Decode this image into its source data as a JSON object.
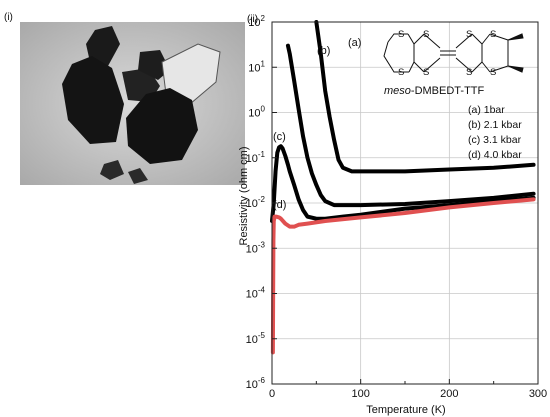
{
  "panels": {
    "left_label": "(i)",
    "right_label": "(ii)"
  },
  "molecule": {
    "name_prefix": "meso",
    "name_suffix": "-DMBEDT-TTF",
    "s_atom": "S"
  },
  "chart_data": {
    "type": "line",
    "xlabel": "Temperature (K)",
    "ylabel": "Resistivity (ohm cm)",
    "xlim": [
      0,
      300
    ],
    "ylim": [
      1e-06,
      100
    ],
    "yscale": "log",
    "x_ticks": [
      0,
      100,
      200,
      300
    ],
    "x_tick_labels": [
      "0",
      "100",
      "200",
      "300"
    ],
    "y_ticks": [
      1e-06,
      1e-05,
      0.0001,
      0.001,
      0.01,
      0.1,
      1,
      10,
      100
    ],
    "y_tick_bases": [
      "10",
      "10",
      "10",
      "10",
      "10",
      "10",
      "10",
      "10",
      "10"
    ],
    "y_tick_exponents": [
      "-6",
      "-5",
      "-4",
      "-3",
      "-2",
      "-1",
      "0",
      "1",
      "2"
    ],
    "grid": true,
    "legend_position": "top-right",
    "legend": [
      "(a) 1bar",
      "(b) 2.1 kbar",
      "(c) 3.1 kbar",
      "(d) 4.0 kbar"
    ],
    "series": [
      {
        "tag": "(a)",
        "color": "#000000",
        "x": [
          50,
          55,
          60,
          65,
          70,
          75,
          80,
          90,
          100,
          120,
          150,
          200,
          250,
          295
        ],
        "y": [
          100,
          20,
          3,
          0.8,
          0.25,
          0.09,
          0.06,
          0.05,
          0.05,
          0.05,
          0.05,
          0.055,
          0.06,
          0.07
        ]
      },
      {
        "tag": "(b)",
        "color": "#000000",
        "x": [
          18,
          20,
          25,
          30,
          35,
          40,
          45,
          50,
          55,
          60,
          70,
          80,
          100,
          150,
          200,
          250,
          295
        ],
        "y": [
          30,
          20,
          5,
          1.2,
          0.3,
          0.1,
          0.045,
          0.025,
          0.015,
          0.011,
          0.009,
          0.009,
          0.009,
          0.0095,
          0.011,
          0.013,
          0.016
        ]
      },
      {
        "tag": "(c)",
        "color": "#000000",
        "x": [
          0,
          2,
          4,
          6,
          8,
          10,
          12,
          15,
          18,
          20,
          25,
          30,
          35,
          40,
          50,
          60,
          80,
          100,
          150,
          200,
          250,
          295
        ],
        "y": [
          0.004,
          0.01,
          0.05,
          0.13,
          0.17,
          0.18,
          0.16,
          0.11,
          0.07,
          0.05,
          0.025,
          0.012,
          0.007,
          0.005,
          0.0045,
          0.0045,
          0.005,
          0.0055,
          0.0075,
          0.009,
          0.011,
          0.013
        ]
      },
      {
        "tag": "(d)",
        "color": "#e05050",
        "x": [
          1,
          1.3,
          1.6,
          2,
          3,
          5,
          8,
          10,
          15,
          20,
          25,
          30,
          40,
          60,
          100,
          150,
          200,
          250,
          295
        ],
        "y": [
          5e-06,
          0.0001,
          0.0015,
          0.004,
          0.005,
          0.005,
          0.0048,
          0.0045,
          0.0035,
          0.003,
          0.003,
          0.0033,
          0.0035,
          0.004,
          0.0048,
          0.006,
          0.008,
          0.01,
          0.012
        ]
      }
    ]
  }
}
